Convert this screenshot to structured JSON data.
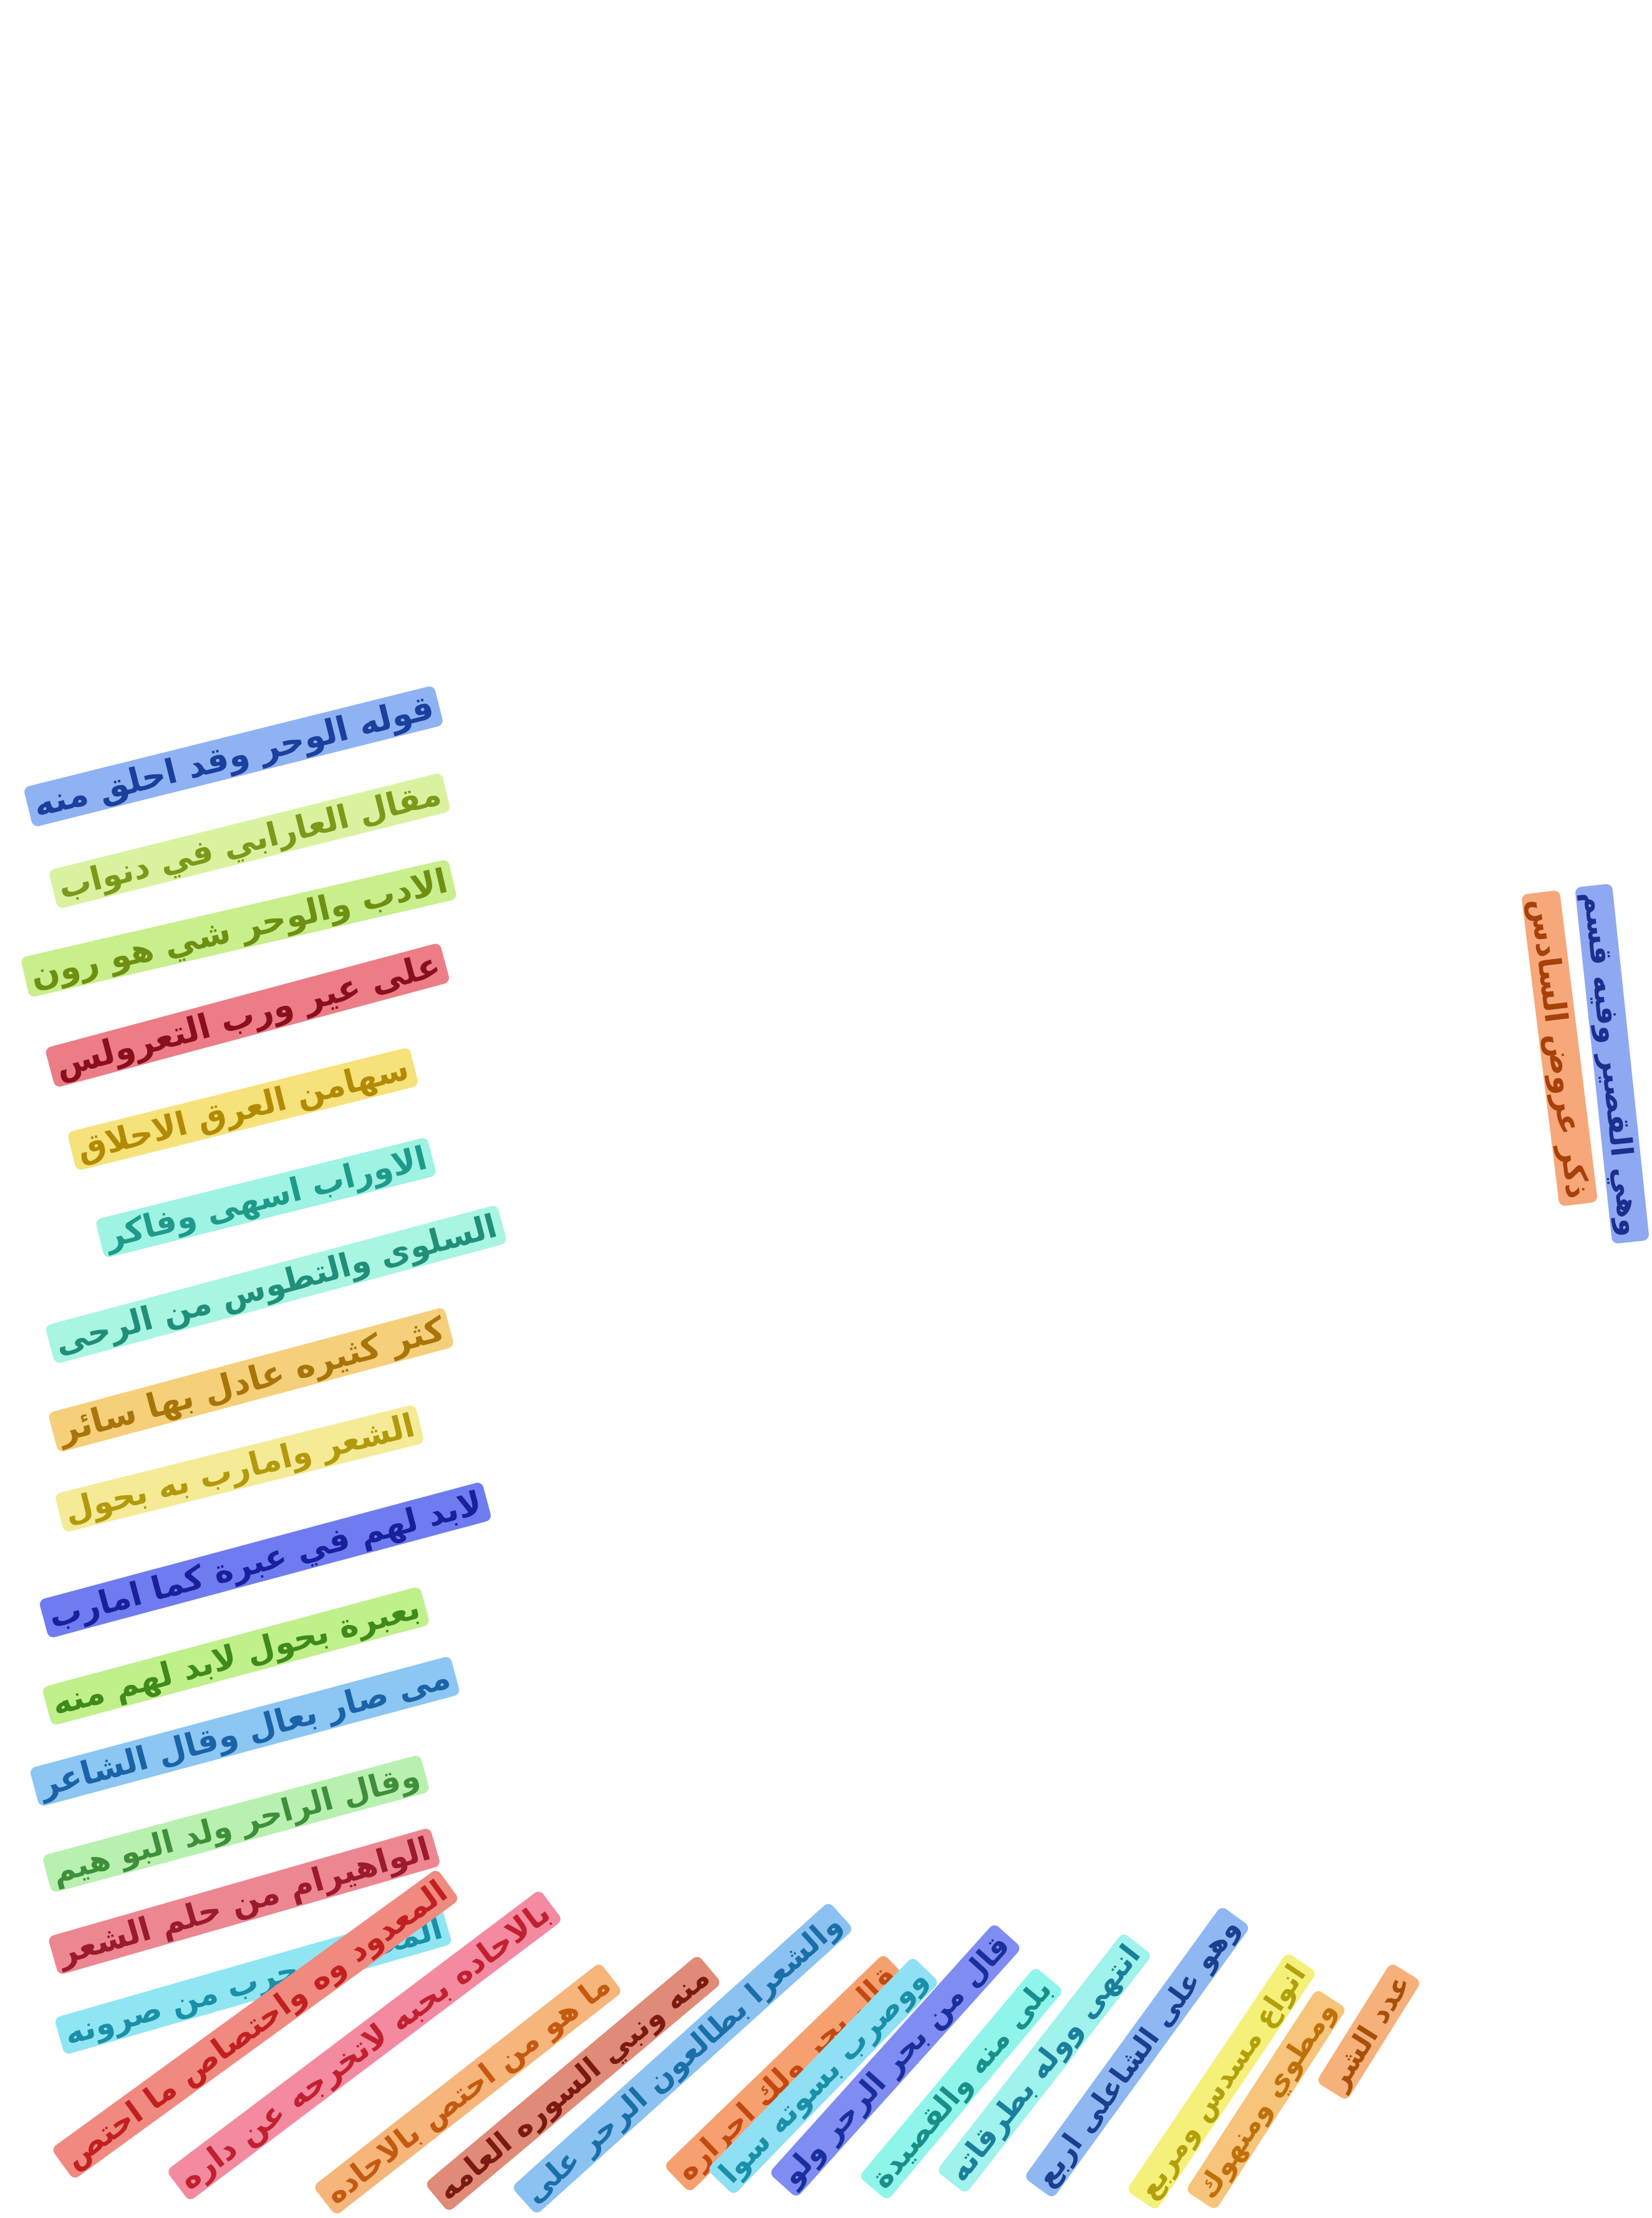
{
  "manuscript": {
    "main_column": [
      {
        "text": "قوله الوحر وقد احلق منه",
        "color": "#1a3f9c",
        "highlight": "#8fb3f2"
      },
      {
        "text": "مقال العارابي في دنواب",
        "color": "#7a9a1a",
        "highlight": "#d9f2a0"
      },
      {
        "text": "الادب والوحر شي هو رون",
        "color": "#6f8f12",
        "highlight": "#c8ef8c"
      },
      {
        "text": "على عير ورب التعرولس",
        "color": "#8a0f1e",
        "highlight": "#ec7d86"
      },
      {
        "text": "سهامن العرق الاحلاق",
        "color": "#b38a05",
        "highlight": "#f6e27a"
      },
      {
        "text": "الاوراب اسهى وفاكر",
        "color": "#1f9a8a",
        "highlight": "#9ef3e3"
      },
      {
        "text": "السلوى والتطوس من الرحى",
        "color": "#1f8f7a",
        "highlight": "#a8f5e1"
      },
      {
        "text": "كثر كثيره عادل بها سائر",
        "color": "#a8750a",
        "highlight": "#f6cf7a"
      },
      {
        "text": "الشعر وامارب به بحول",
        "color": "#b39a0d",
        "highlight": "#f5ea96"
      },
      {
        "text": "لابد لهم في عبرة كما امارب",
        "color": "#1a1f9c",
        "highlight": "#6f7cf0"
      },
      {
        "text": "بعبرة بحول لابد لهم منه",
        "color": "#3f8a1a",
        "highlight": "#bff08c"
      },
      {
        "text": "مى صار بعال وقال الشاعر",
        "color": "#1a63a8",
        "highlight": "#8cc6f2"
      },
      {
        "text": "وقال الراحر ولد البو هيم",
        "color": "#3f8f3a",
        "highlight": "#b8f0b0"
      },
      {
        "text": "الواهيرام من حلم الشعر",
        "color": "#9c1a2e",
        "highlight": "#ec8792"
      },
      {
        "text": "المحدود وحرب من صرونه",
        "color": "#1a8fa8",
        "highlight": "#8fe6f2"
      }
    ],
    "bottom_lines": [
      {
        "text": "المعدود وه واحتصاص ما احتص",
        "color": "#c22020",
        "highlight": "#f08a80"
      },
      {
        "text": "بالاحاده بحبه لاتخرجه عن داره",
        "color": "#c22030",
        "highlight": "#f38aa0"
      },
      {
        "text": "ما هو من احتص بالاحاده",
        "color": "#c45a10",
        "highlight": "#f6b57a"
      },
      {
        "text": "منه ونبي السوره العامه",
        "color": "#7a1a10",
        "highlight": "#e08a78"
      },
      {
        "text": "والشعرا بطالعون الرحر على",
        "color": "#1a6fa8",
        "highlight": "#8cc2f2"
      },
      {
        "text": "قال بحر ولك احراره",
        "color": "#c24a10",
        "highlight": "#f6a070"
      },
      {
        "text": "ووصرب بسوته سوا",
        "color": "#1a8fa8",
        "highlight": "#8fdff5"
      },
      {
        "text": "قال من بحر الرحر ولو",
        "color": "#1a2f9c",
        "highlight": "#7f8cf2"
      },
      {
        "text": "بلى منه والقصيدة",
        "color": "#1a8f8a",
        "highlight": "#8ff5ea"
      },
      {
        "text": "انتهى ووله بطرقاته",
        "color": "#1a7f9c",
        "highlight": "#a0f2ec"
      },
      {
        "text": "وهو على الشاعلى اربع",
        "color": "#1a3f8f",
        "highlight": "#8fb8f2"
      },
      {
        "text": "انواع مسدس ومربع",
        "color": "#b3a00d",
        "highlight": "#f5f07a"
      },
      {
        "text": "ومطوي ومنهوك",
        "color": "#c0700a",
        "highlight": "#f6c47a"
      },
      {
        "text": "عدد الشر",
        "color": "#a8500a",
        "highlight": "#f6b07a"
      }
    ],
    "margin_lines": [
      {
        "text": "ذكر عروض السادس",
        "color": "#a8400a",
        "highlight": "#f6a87a"
      },
      {
        "text": "وهي القصير وفيه قسم",
        "color": "#1a2f8f",
        "highlight": "#8fa8f2"
      }
    ]
  }
}
